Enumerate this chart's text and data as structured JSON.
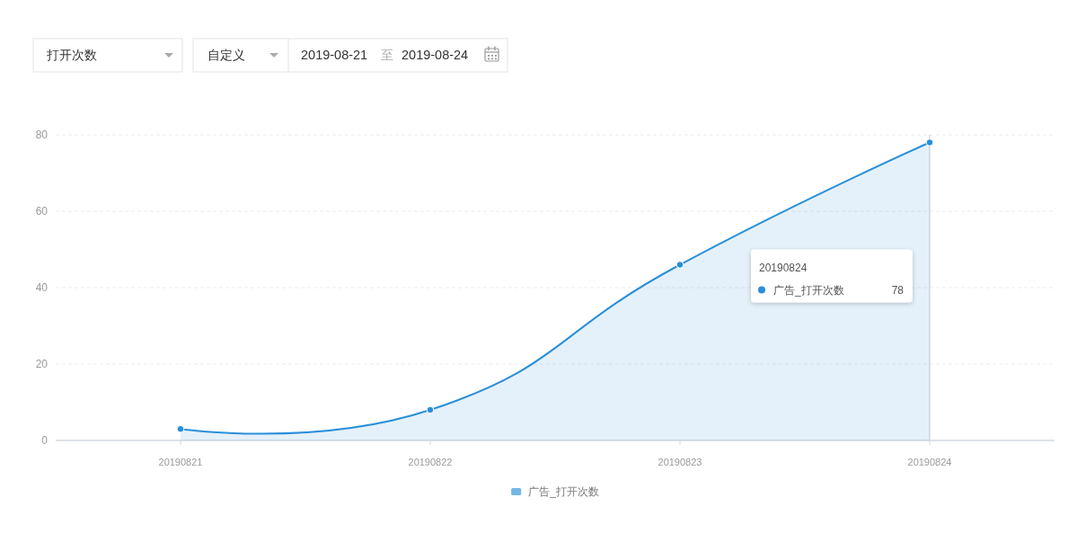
{
  "chart_data": {
    "type": "area",
    "categories": [
      "20190821",
      "20190822",
      "20190823",
      "20190824"
    ],
    "series": [
      {
        "name": "广告_打开次数",
        "color": "#2a8fd8",
        "values": [
          3,
          8,
          46,
          78
        ]
      }
    ],
    "ylim": [
      0,
      80
    ],
    "yticks": [
      0,
      20,
      40,
      60,
      80
    ],
    "grid": "y",
    "legend": "bottom",
    "marker": "circle",
    "ref_lines": [
      {
        "axis": "x",
        "value": "20190824",
        "color": "#cfd3da"
      }
    ],
    "annotations": [
      "打开次数",
      "自定义",
      "2019-08-21",
      "至",
      "2019-08-24",
      "78"
    ]
  }
}
